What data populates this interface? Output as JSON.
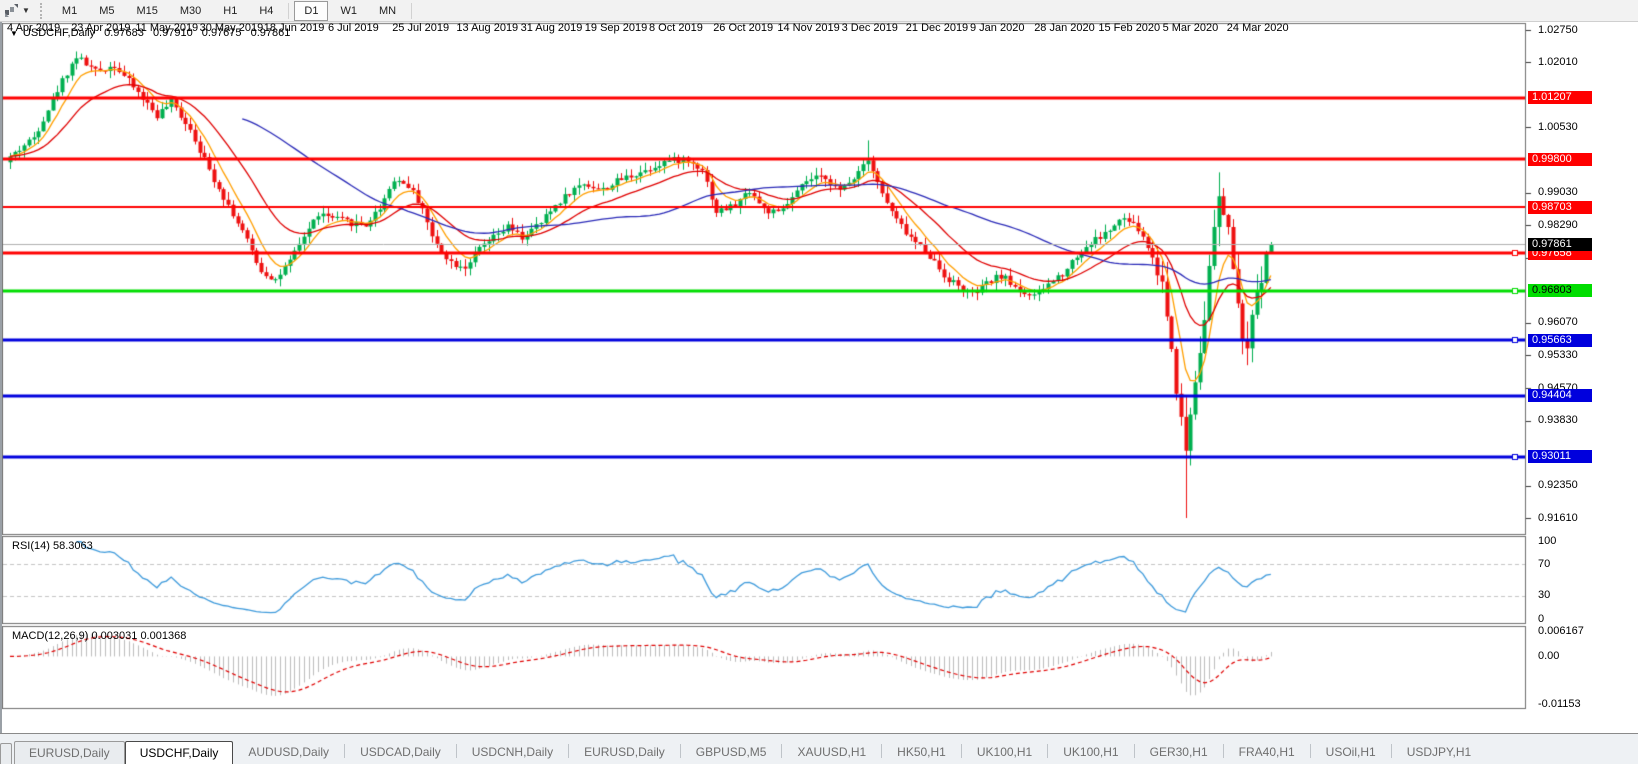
{
  "toolbar": {
    "chart_tools_icon": "chart-periods-icon",
    "timeframes": [
      "M1",
      "M5",
      "M15",
      "M30",
      "H1",
      "H4",
      "D1",
      "W1",
      "MN"
    ],
    "selected": "D1"
  },
  "chart": {
    "title": {
      "symbol": "USDCHF,Daily",
      "open": "0.97683",
      "high": "0.97910",
      "low": "0.97675",
      "close": "0.97861"
    }
  },
  "chart_data": {
    "type": "candlestick",
    "symbol": "USDCHF",
    "timeframe": "Daily",
    "x_labels": [
      "4 Apr 2019",
      "23 Apr 2019",
      "11 May 2019",
      "30 May 2019",
      "18 Jun 2019",
      "6 Jul 2019",
      "25 Jul 2019",
      "13 Aug 2019",
      "31 Aug 2019",
      "19 Sep 2019",
      "8 Oct 2019",
      "26 Oct 2019",
      "14 Nov 2019",
      "3 Dec 2019",
      "21 Dec 2019",
      "9 Jan 2020",
      "28 Jan 2020",
      "15 Feb 2020",
      "5 Mar 2020",
      "24 Mar 2020"
    ],
    "y_axis_ticks": [
      "1.02750",
      "1.02010",
      "1.00530",
      "0.99030",
      "0.98290",
      "0.97550",
      "0.96070",
      "0.95330",
      "0.94570",
      "0.93830",
      "0.92350",
      "0.91610"
    ],
    "price_min": 0.9161,
    "price_max": 1.0275,
    "candle_count": 267,
    "up_color": "#00b050",
    "down_color": "#ee1111",
    "price_path_anchors": [
      [
        0,
        0.9985
      ],
      [
        5,
        1.003
      ],
      [
        11,
        1.016
      ],
      [
        14,
        1.0215
      ],
      [
        18,
        1.018
      ],
      [
        22,
        1.0195
      ],
      [
        26,
        1.0145
      ],
      [
        31,
        1.008
      ],
      [
        34,
        1.011
      ],
      [
        38,
        1.005
      ],
      [
        42,
        0.9955
      ],
      [
        46,
        0.9875
      ],
      [
        49,
        0.9815
      ],
      [
        53,
        0.9725
      ],
      [
        56,
        0.9705
      ],
      [
        59,
        0.9745
      ],
      [
        62,
        0.9805
      ],
      [
        65,
        0.9855
      ],
      [
        68,
        0.9845
      ],
      [
        72,
        0.9835
      ],
      [
        75,
        0.983
      ],
      [
        78,
        0.987
      ],
      [
        81,
        0.9935
      ],
      [
        84,
        0.992
      ],
      [
        87,
        0.987
      ],
      [
        89,
        0.98
      ],
      [
        93,
        0.9745
      ],
      [
        96,
        0.9735
      ],
      [
        99,
        0.9775
      ],
      [
        102,
        0.98
      ],
      [
        105,
        0.9825
      ],
      [
        108,
        0.98
      ],
      [
        112,
        0.9835
      ],
      [
        115,
        0.9875
      ],
      [
        118,
        0.9905
      ],
      [
        121,
        0.9925
      ],
      [
        125,
        0.991
      ],
      [
        129,
        0.9935
      ],
      [
        134,
        0.9955
      ],
      [
        138,
        0.9975
      ],
      [
        142,
        0.998
      ],
      [
        146,
        0.996
      ],
      [
        149,
        0.986
      ],
      [
        153,
        0.9875
      ],
      [
        156,
        0.991
      ],
      [
        159,
        0.9865
      ],
      [
        162,
        0.9855
      ],
      [
        165,
        0.989
      ],
      [
        168,
        0.993
      ],
      [
        172,
        0.994
      ],
      [
        175,
        0.9905
      ],
      [
        178,
        0.994
      ],
      [
        181,
        0.9985
      ],
      [
        184,
        0.99
      ],
      [
        187,
        0.984
      ],
      [
        190,
        0.98
      ],
      [
        194,
        0.976
      ],
      [
        197,
        0.9715
      ],
      [
        200,
        0.969
      ],
      [
        203,
        0.967
      ],
      [
        206,
        0.9695
      ],
      [
        209,
        0.9715
      ],
      [
        213,
        0.968
      ],
      [
        216,
        0.9665
      ],
      [
        219,
        0.9695
      ],
      [
        222,
        0.972
      ],
      [
        225,
        0.976
      ],
      [
        228,
        0.979
      ],
      [
        231,
        0.981
      ],
      [
        235,
        0.9845
      ],
      [
        238,
        0.982
      ],
      [
        240,
        0.978
      ],
      [
        243,
        0.97
      ],
      [
        245,
        0.955
      ],
      [
        247,
        0.938
      ],
      [
        248,
        0.932
      ],
      [
        250,
        0.948
      ],
      [
        252,
        0.963
      ],
      [
        254,
        0.982
      ],
      [
        255,
        0.988
      ],
      [
        257,
        0.983
      ],
      [
        259,
        0.963
      ],
      [
        261,
        0.9535
      ],
      [
        263,
        0.968
      ],
      [
        265,
        0.976
      ],
      [
        266,
        0.9786
      ]
    ],
    "wick_overrides": {
      "14": {
        "high": 1.0226
      },
      "181": {
        "high": 1.0023
      },
      "248": {
        "low": 0.9161
      },
      "255": {
        "high": 0.995
      }
    },
    "last_candle": {
      "open": 0.97683,
      "high": 0.9791,
      "low": 0.97675,
      "close": 0.97861
    },
    "current_price": {
      "value": "0.97861",
      "price": 0.97861,
      "bg": "#000000",
      "fg": "#ffffff"
    },
    "horizontal_lines": [
      {
        "price": 1.01207,
        "label": "1.01207",
        "color": "#ff0000",
        "width": 3,
        "handle": false,
        "fg": "#ffffff"
      },
      {
        "price": 0.998,
        "label": "0.99800",
        "color": "#ff0000",
        "width": 3,
        "handle": false,
        "fg": "#ffffff"
      },
      {
        "price": 0.98703,
        "label": "0.98703",
        "color": "#ff0000",
        "width": 2,
        "handle": false,
        "fg": "#ffffff"
      },
      {
        "price": 0.97658,
        "label": "0.97658",
        "color": "#ff0000",
        "width": 3,
        "handle": true,
        "fg": "#ffffff"
      },
      {
        "price": 0.96803,
        "label": "0.96803",
        "color": "#00dd00",
        "width": 3,
        "handle": true,
        "fg": "#000000"
      },
      {
        "price": 0.95663,
        "label": "0.95663",
        "color": "#0000dd",
        "width": 3,
        "handle": true,
        "fg": "#ffffff"
      },
      {
        "price": 0.94404,
        "label": "0.94404",
        "color": "#0000dd",
        "width": 3,
        "handle": false,
        "fg": "#ffffff"
      },
      {
        "price": 0.93011,
        "label": "0.93011",
        "color": "#0000dd",
        "width": 3,
        "handle": true,
        "fg": "#ffffff"
      }
    ],
    "grey_price_line": {
      "price": 0.97861,
      "color": "#b0b0b0"
    },
    "moving_averages": [
      {
        "name": "fast",
        "method": "ema",
        "period": 7,
        "color": "#ff9f00"
      },
      {
        "name": "medium",
        "method": "ema",
        "period": 20,
        "color": "#e00000"
      },
      {
        "name": "slow",
        "method": "sma",
        "period": 50,
        "color": "#2a2ab8"
      }
    ],
    "indicators": {
      "rsi": {
        "label": "RSI(14)",
        "value": "58.3063",
        "period": 14,
        "levels": [
          70,
          30
        ],
        "axis_ticks": [
          "100",
          "70",
          "30",
          "0"
        ],
        "color": "#3f9bdc",
        "level_color": "#c4c4c4"
      },
      "macd": {
        "label": "MACD(12,26,9)",
        "values": [
          "0.003031",
          "0.001368"
        ],
        "fast": 12,
        "slow": 26,
        "signal": 9,
        "axis_max": 0.006167,
        "axis_min": -0.01153,
        "axis_ticks": [
          "0.006167",
          "0.00",
          "-0.01153"
        ],
        "histogram_color": "#bdbdbd",
        "signal_color": "#e00000"
      }
    }
  },
  "tabs": {
    "items": [
      {
        "label": "EURUSD,Daily",
        "active": false,
        "boxed": true
      },
      {
        "label": "USDCHF,Daily",
        "active": true,
        "boxed": true
      },
      {
        "label": "AUDUSD,Daily",
        "active": false,
        "boxed": false
      },
      {
        "label": "USDCAD,Daily",
        "active": false,
        "boxed": false
      },
      {
        "label": "USDCNH,Daily",
        "active": false,
        "boxed": false
      },
      {
        "label": "EURUSD,Daily",
        "active": false,
        "boxed": false
      },
      {
        "label": "GBPUSD,M5",
        "active": false,
        "boxed": false
      },
      {
        "label": "XAUUSD,H1",
        "active": false,
        "boxed": false
      },
      {
        "label": "HK50,H1",
        "active": false,
        "boxed": false
      },
      {
        "label": "UK100,H1",
        "active": false,
        "boxed": false
      },
      {
        "label": "UK100,H1",
        "active": false,
        "boxed": false
      },
      {
        "label": "GER30,H1",
        "active": false,
        "boxed": false
      },
      {
        "label": "FRA40,H1",
        "active": false,
        "boxed": false
      },
      {
        "label": "USOil,H1",
        "active": false,
        "boxed": false
      },
      {
        "label": "USDJPY,H1",
        "active": false,
        "boxed": false
      }
    ]
  }
}
